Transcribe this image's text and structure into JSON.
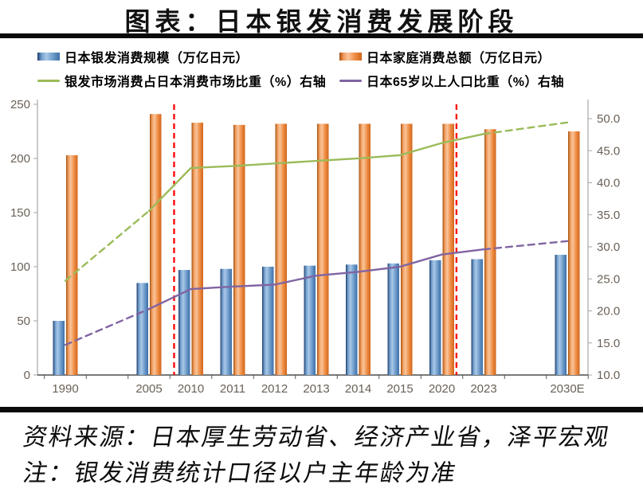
{
  "title": "图表：日本银发消费发展阶段",
  "legend": {
    "items": [
      {
        "label": "日本银发消费规模（万亿日元）"
      },
      {
        "label": "日本家庭消费总额（万亿日元）"
      },
      {
        "label": "银发市场消费占日本消费市场比重（%）右轴"
      },
      {
        "label": "日本65岁以上人口比重（%）右轴"
      }
    ]
  },
  "chart_data": {
    "type": "bar+line combo",
    "title": "日本银发消费发展阶段",
    "categories": [
      "1990",
      "2005",
      "2010",
      "2011",
      "2012",
      "2013",
      "2014",
      "2015",
      "2020",
      "2023",
      "2030E"
    ],
    "slots": [
      0,
      2,
      3,
      4,
      5,
      6,
      7,
      8,
      9,
      10,
      12
    ],
    "legend_position": "top",
    "grid": false,
    "left_axis": {
      "min": 0,
      "max": 250,
      "ticks": [
        0,
        50,
        100,
        150,
        200,
        250
      ]
    },
    "right_axis": {
      "min": 10,
      "max": 52.2,
      "ticks": [
        "10.0",
        "15.0",
        "20.0",
        "25.0",
        "30.0",
        "35.0",
        "40.0",
        "45.0",
        "50.0"
      ]
    },
    "series": [
      {
        "key": "silver-consumption",
        "name": "日本银发消费规模（万亿日元）",
        "type": "bar",
        "axis": "left",
        "color": "#4f81bd",
        "values": [
          50,
          85,
          97,
          98,
          100,
          101,
          102,
          103,
          106,
          107,
          111
        ]
      },
      {
        "key": "household-consumption",
        "name": "日本家庭消费总额（万亿日元）",
        "type": "bar",
        "axis": "left",
        "color": "#ed7d31",
        "values": [
          203,
          241,
          233,
          231,
          232,
          232,
          232,
          232,
          232,
          227,
          225
        ]
      },
      {
        "key": "silver-share",
        "name": "银发市场消费占日本消费市场比重（%）右轴",
        "type": "line",
        "axis": "right",
        "color": "#9bbb59",
        "values": [
          24.7,
          35.6,
          42.3,
          42.6,
          43.0,
          43.4,
          43.8,
          44.3,
          46.2,
          47.6,
          49.4
        ],
        "segments": [
          {
            "from": 0,
            "to": 1,
            "style": "dashed"
          },
          {
            "from": 1,
            "to": 9,
            "style": "solid"
          },
          {
            "from": 9,
            "to": 10,
            "style": "dashed"
          }
        ]
      },
      {
        "key": "pop65-share",
        "name": "日本65岁以上人口比重（%）右轴",
        "type": "line",
        "axis": "right",
        "color": "#8064a2",
        "values": [
          14.7,
          20.3,
          23.4,
          23.8,
          24.1,
          25.5,
          26.1,
          26.9,
          28.8,
          29.6,
          30.9
        ],
        "segments": [
          {
            "from": 0,
            "to": 1,
            "style": "dashed"
          },
          {
            "from": 1,
            "to": 9,
            "style": "solid"
          },
          {
            "from": 9,
            "to": 10,
            "style": "dashed"
          }
        ]
      }
    ],
    "phase_lines": [
      {
        "slot": 2.6,
        "color": "#ff0000"
      },
      {
        "slot": 9.35,
        "color": "#ff0000"
      }
    ]
  },
  "footer": {
    "source": "资料来源：日本厚生劳动省、经济产业省，泽平宏观",
    "note": "注：银发消费统计口径以户主年龄为准"
  },
  "colors": {
    "bar_silver": "#4f81bd",
    "bar_household": "#ed7d31",
    "line_silver_share": "#9bbb59",
    "line_pop65": "#8064a2",
    "phase_line": "#ff0000",
    "axis_text": "#6a6157"
  }
}
